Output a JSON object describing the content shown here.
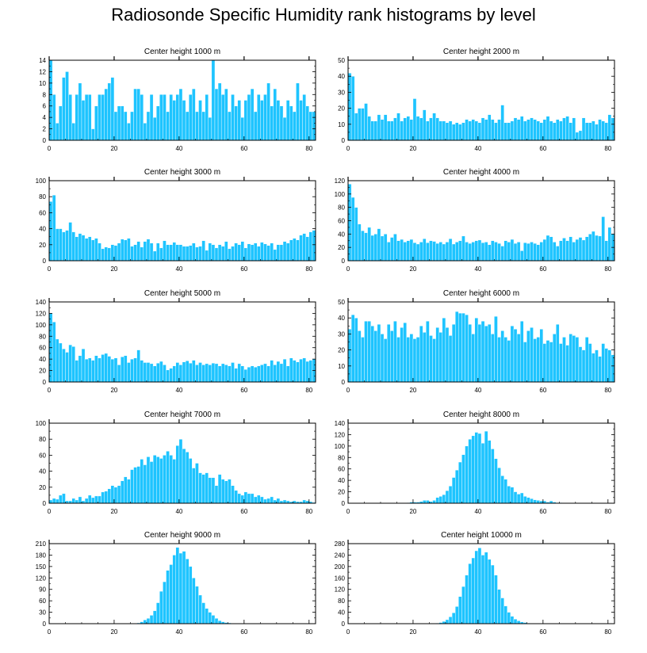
{
  "title": "Radiosonde Specific Humidity rank histograms by level",
  "colors": {
    "bar": "#1ec4ff",
    "bar_edge": "#ffffff",
    "axis": "#000000"
  },
  "chart_data": [
    {
      "type": "bar",
      "title": "Center height 1000 m",
      "x": "rank bins 0-81",
      "ylim": [
        0,
        14
      ],
      "yticks": [
        0,
        2,
        4,
        6,
        8,
        10,
        12,
        14
      ],
      "xticks": [
        0,
        20,
        40,
        60,
        80
      ],
      "values": [
        14,
        8,
        3,
        6,
        11,
        12,
        8,
        3,
        8,
        10,
        7,
        8,
        8,
        2,
        6,
        8,
        8,
        9,
        10,
        11,
        5,
        6,
        6,
        5,
        3,
        5,
        9,
        9,
        8,
        3,
        5,
        8,
        4,
        6,
        8,
        8,
        5,
        8,
        7,
        8,
        9,
        7,
        5,
        8,
        9,
        5,
        7,
        5,
        8,
        4,
        14,
        9,
        10,
        8,
        9,
        5,
        8,
        6,
        7,
        4,
        7,
        8,
        9,
        5,
        8,
        7,
        8,
        10,
        6,
        9,
        7,
        6,
        4,
        7,
        6,
        5,
        10,
        7,
        8,
        6,
        5,
        5
      ]
    },
    {
      "type": "bar",
      "title": "Center height 2000 m",
      "x": "rank bins 0-81",
      "ylim": [
        0,
        50
      ],
      "yticks": [
        0,
        10,
        20,
        30,
        40,
        50
      ],
      "xticks": [
        0,
        20,
        40,
        60,
        80
      ],
      "values": [
        42,
        40,
        17,
        20,
        20,
        23,
        15,
        12,
        12,
        16,
        13,
        16,
        12,
        12,
        14,
        17,
        12,
        14,
        15,
        13,
        26,
        15,
        14,
        19,
        12,
        14,
        17,
        14,
        12,
        12,
        11,
        12,
        10,
        11,
        10,
        11,
        13,
        12,
        13,
        12,
        11,
        14,
        13,
        16,
        13,
        11,
        13,
        22,
        11,
        11,
        12,
        14,
        13,
        15,
        12,
        13,
        14,
        13,
        12,
        11,
        13,
        15,
        12,
        11,
        13,
        12,
        14,
        15,
        11,
        14,
        5,
        6,
        14,
        11,
        11,
        12,
        10,
        13,
        12,
        11,
        16,
        14
      ]
    },
    {
      "type": "bar",
      "title": "Center height 3000 m",
      "x": "rank bins 0-81",
      "ylim": [
        0,
        100
      ],
      "yticks": [
        0,
        20,
        40,
        60,
        80,
        100
      ],
      "xticks": [
        0,
        20,
        40,
        60,
        80
      ],
      "values": [
        74,
        82,
        40,
        40,
        36,
        38,
        48,
        36,
        30,
        34,
        32,
        28,
        30,
        26,
        28,
        22,
        15,
        17,
        16,
        20,
        19,
        22,
        27,
        26,
        28,
        18,
        20,
        24,
        17,
        24,
        27,
        22,
        12,
        22,
        16,
        25,
        20,
        20,
        23,
        20,
        20,
        18,
        18,
        19,
        22,
        17,
        18,
        25,
        13,
        22,
        20,
        16,
        20,
        18,
        24,
        15,
        18,
        22,
        20,
        24,
        16,
        21,
        20,
        22,
        18,
        23,
        21,
        19,
        22,
        14,
        20,
        20,
        24,
        22,
        26,
        28,
        26,
        32,
        34,
        30,
        36,
        38
      ]
    },
    {
      "type": "bar",
      "title": "Center height 4000 m",
      "x": "rank bins 0-81",
      "ylim": [
        0,
        120
      ],
      "yticks": [
        0,
        20,
        40,
        60,
        80,
        100,
        120
      ],
      "xticks": [
        0,
        20,
        40,
        60,
        80
      ],
      "values": [
        115,
        95,
        80,
        55,
        45,
        42,
        50,
        38,
        40,
        48,
        37,
        40,
        28,
        35,
        40,
        30,
        32,
        28,
        30,
        32,
        27,
        25,
        28,
        33,
        27,
        30,
        29,
        26,
        28,
        25,
        28,
        33,
        25,
        28,
        30,
        37,
        28,
        26,
        28,
        30,
        31,
        27,
        28,
        24,
        30,
        28,
        26,
        22,
        30,
        28,
        32,
        26,
        28,
        15,
        27,
        26,
        28,
        26,
        24,
        28,
        32,
        38,
        36,
        28,
        22,
        30,
        34,
        30,
        36,
        28,
        32,
        35,
        31,
        36,
        40,
        44,
        38,
        37,
        66,
        30,
        50,
        40
      ]
    },
    {
      "type": "bar",
      "title": "Center height 5000 m",
      "x": "rank bins 0-81",
      "ylim": [
        0,
        140
      ],
      "yticks": [
        0,
        20,
        40,
        60,
        80,
        100,
        120,
        140
      ],
      "xticks": [
        0,
        20,
        40,
        60,
        80
      ],
      "values": [
        120,
        105,
        75,
        68,
        58,
        52,
        65,
        62,
        38,
        46,
        58,
        40,
        42,
        38,
        46,
        42,
        48,
        50,
        45,
        40,
        42,
        30,
        44,
        46,
        34,
        40,
        42,
        56,
        38,
        34,
        34,
        32,
        28,
        33,
        36,
        30,
        21,
        24,
        28,
        34,
        30,
        35,
        37,
        33,
        38,
        30,
        34,
        30,
        32,
        30,
        33,
        32,
        28,
        32,
        30,
        28,
        34,
        24,
        32,
        28,
        22,
        26,
        28,
        26,
        28,
        30,
        32,
        28,
        38,
        30,
        36,
        32,
        40,
        28,
        42,
        38,
        35,
        40,
        42,
        36,
        38,
        40
      ]
    },
    {
      "type": "bar",
      "title": "Center height 6000 m",
      "x": "rank bins 0-81",
      "ylim": [
        0,
        50
      ],
      "yticks": [
        0,
        10,
        20,
        30,
        40,
        50
      ],
      "xticks": [
        0,
        20,
        40,
        60,
        80
      ],
      "values": [
        33,
        42,
        40,
        32,
        28,
        38,
        38,
        35,
        32,
        36,
        30,
        27,
        36,
        32,
        38,
        28,
        34,
        37,
        28,
        30,
        27,
        28,
        35,
        31,
        38,
        29,
        27,
        34,
        31,
        40,
        34,
        29,
        36,
        44,
        43,
        43,
        42,
        36,
        30,
        40,
        36,
        38,
        35,
        36,
        30,
        41,
        28,
        32,
        28,
        26,
        35,
        33,
        30,
        38,
        25,
        32,
        34,
        27,
        28,
        33,
        24,
        26,
        25,
        30,
        36,
        24,
        28,
        23,
        30,
        29,
        28,
        22,
        20,
        28,
        24,
        18,
        20,
        16,
        24,
        21,
        20,
        17
      ]
    },
    {
      "type": "bar",
      "title": "Center height 7000 m",
      "x": "rank bins 0-81",
      "ylim": [
        0,
        100
      ],
      "yticks": [
        0,
        20,
        40,
        60,
        80,
        100
      ],
      "xticks": [
        0,
        20,
        40,
        60,
        80
      ],
      "values": [
        4,
        6,
        5,
        10,
        12,
        3,
        3,
        6,
        4,
        8,
        3,
        6,
        10,
        7,
        9,
        9,
        14,
        15,
        18,
        22,
        20,
        22,
        28,
        33,
        30,
        42,
        45,
        46,
        55,
        48,
        58,
        52,
        60,
        58,
        56,
        60,
        65,
        60,
        55,
        72,
        80,
        68,
        64,
        56,
        44,
        50,
        38,
        36,
        38,
        32,
        32,
        22,
        36,
        30,
        28,
        30,
        22,
        16,
        12,
        10,
        14,
        12,
        12,
        8,
        10,
        8,
        5,
        6,
        8,
        4,
        6,
        3,
        4,
        3,
        2,
        3,
        2,
        2,
        4,
        3,
        2,
        1
      ]
    },
    {
      "type": "bar",
      "title": "Center height 8000 m",
      "x": "rank bins 0-81",
      "ylim": [
        0,
        140
      ],
      "yticks": [
        0,
        20,
        40,
        60,
        80,
        100,
        120,
        140
      ],
      "xticks": [
        0,
        20,
        40,
        60,
        80
      ],
      "values": [
        0,
        0,
        0,
        0,
        0,
        0,
        0,
        0,
        0,
        0,
        0,
        0,
        0,
        0,
        0,
        0,
        0,
        0,
        1,
        2,
        2,
        2,
        3,
        5,
        5,
        3,
        5,
        10,
        12,
        15,
        22,
        30,
        45,
        58,
        72,
        85,
        100,
        112,
        118,
        124,
        122,
        105,
        126,
        110,
        95,
        78,
        62,
        48,
        42,
        30,
        28,
        20,
        16,
        18,
        12,
        10,
        8,
        6,
        5,
        4,
        4,
        2,
        4,
        2,
        1,
        1,
        0,
        0,
        0,
        0,
        0,
        0,
        0,
        0,
        0,
        0,
        0,
        0,
        0,
        0,
        0,
        0
      ]
    },
    {
      "type": "bar",
      "title": "Center height 9000 m",
      "x": "rank bins 0-81",
      "ylim": [
        0,
        210
      ],
      "yticks": [
        0,
        30,
        60,
        90,
        120,
        150,
        180,
        210
      ],
      "xticks": [
        0,
        20,
        40,
        60,
        80
      ],
      "values": [
        0,
        0,
        0,
        0,
        0,
        0,
        0,
        0,
        0,
        0,
        0,
        0,
        0,
        0,
        0,
        0,
        0,
        0,
        0,
        0,
        0,
        0,
        0,
        0,
        0,
        0,
        1,
        2,
        5,
        10,
        14,
        22,
        34,
        55,
        85,
        110,
        140,
        155,
        180,
        200,
        185,
        190,
        170,
        150,
        120,
        98,
        75,
        55,
        40,
        30,
        22,
        14,
        8,
        5,
        3,
        2,
        1,
        1,
        0,
        0,
        0,
        0,
        0,
        0,
        0,
        0,
        0,
        0,
        0,
        0,
        0,
        0,
        0,
        0,
        0,
        0,
        0,
        0,
        0,
        0,
        0,
        0
      ]
    },
    {
      "type": "bar",
      "title": "Center height 10000 m",
      "x": "rank bins 0-81",
      "ylim": [
        0,
        280
      ],
      "yticks": [
        0,
        40,
        80,
        120,
        160,
        200,
        240,
        280
      ],
      "xticks": [
        0,
        20,
        40,
        60,
        80
      ],
      "values": [
        0,
        0,
        0,
        0,
        0,
        0,
        0,
        0,
        0,
        0,
        0,
        0,
        0,
        0,
        0,
        0,
        0,
        0,
        0,
        0,
        0,
        0,
        0,
        0,
        0,
        0,
        1,
        2,
        4,
        8,
        14,
        24,
        38,
        60,
        95,
        130,
        170,
        210,
        230,
        255,
        265,
        240,
        250,
        225,
        205,
        170,
        120,
        90,
        62,
        40,
        26,
        16,
        10,
        6,
        4,
        2,
        1,
        1,
        0,
        0,
        0,
        0,
        0,
        0,
        0,
        0,
        0,
        0,
        0,
        0,
        0,
        0,
        0,
        0,
        0,
        0,
        0,
        0,
        0,
        0,
        0,
        0
      ]
    }
  ]
}
